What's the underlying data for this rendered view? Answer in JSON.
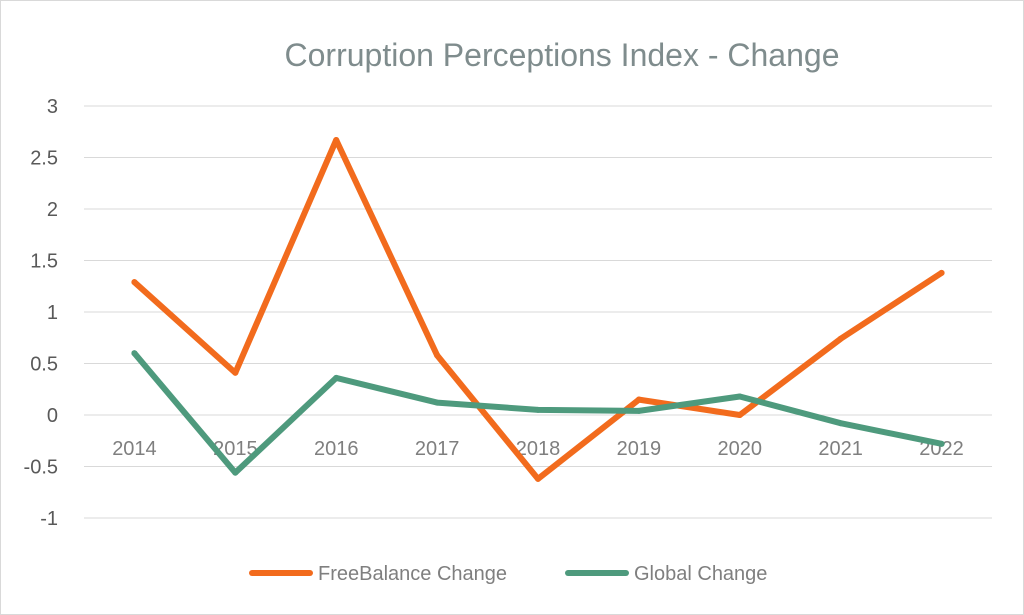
{
  "chart_data": {
    "type": "line",
    "title": "Corruption Perceptions Index - Change",
    "categories": [
      "2014",
      "2015",
      "2016",
      "2017",
      "2018",
      "2019",
      "2020",
      "2021",
      "2022"
    ],
    "series": [
      {
        "name": "FreeBalance Change",
        "color": "#F26B1D",
        "values": [
          1.29,
          0.41,
          2.67,
          0.58,
          -0.62,
          0.15,
          0.0,
          0.74,
          1.38
        ]
      },
      {
        "name": "Global Change",
        "color": "#4E9A7D",
        "values": [
          0.6,
          -0.56,
          0.36,
          0.12,
          0.05,
          0.04,
          0.18,
          -0.08,
          -0.28
        ]
      }
    ],
    "yticks": [
      "3",
      "2.5",
      "2",
      "1.5",
      "1",
      "0.5",
      "0",
      "-0.5",
      "-1"
    ],
    "ylim": [
      -1,
      3
    ],
    "grid": true,
    "legend_position": "bottom"
  }
}
